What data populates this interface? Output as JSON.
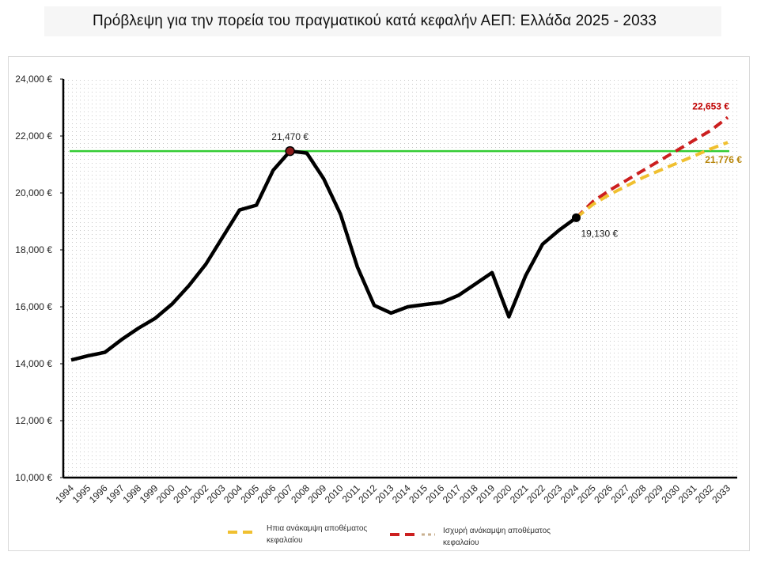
{
  "title": "Πρόβλεψη για την πορεία του πραγματικού κατά κεφαλήν ΑΕΠ: Ελλάδα 2025 - 2033",
  "colors": {
    "history": "#000000",
    "reference": "#33cc33",
    "mild": "#f0c030",
    "strong": "#cc1f1f",
    "mild_label": "#b8860b",
    "strong_label": "#c00000",
    "peak_marker": "#8b1a1a"
  },
  "chart_data": {
    "type": "line",
    "x_labels": [
      "1994",
      "1995",
      "1996",
      "1997",
      "1998",
      "1999",
      "2000",
      "2001",
      "2002",
      "2003",
      "2004",
      "2005",
      "2006",
      "2007",
      "2008",
      "2009",
      "2010",
      "2011",
      "2012",
      "2013",
      "2014",
      "2015",
      "2016",
      "2017",
      "2018",
      "2019",
      "2020",
      "2021",
      "2022",
      "2023",
      "2024",
      "2025",
      "2026",
      "2027",
      "2028",
      "2029",
      "2030",
      "2031",
      "2032",
      "2033"
    ],
    "y_ticks": [
      "10,000 €",
      "12,000 €",
      "14,000 €",
      "16,000 €",
      "18,000 €",
      "20,000 €",
      "22,000 €",
      "24,000 €"
    ],
    "ylim": [
      10000,
      24000
    ],
    "grid": "dotted",
    "legend_position": "bottom",
    "series": [
      {
        "key": "history",
        "x": [
          "1994",
          "1995",
          "1996",
          "1997",
          "1998",
          "1999",
          "2000",
          "2001",
          "2002",
          "2003",
          "2004",
          "2005",
          "2006",
          "2007",
          "2008",
          "2009",
          "2010",
          "2011",
          "2012",
          "2013",
          "2014",
          "2015",
          "2016",
          "2017",
          "2018",
          "2019",
          "2020",
          "2021",
          "2022",
          "2023",
          "2024"
        ],
        "values": [
          14130,
          14280,
          14400,
          14850,
          15250,
          15600,
          16100,
          16750,
          17500,
          18450,
          19400,
          19570,
          20800,
          21470,
          21400,
          20500,
          19250,
          17400,
          16050,
          15780,
          16000,
          16080,
          16150,
          16400,
          16800,
          17200,
          15650,
          17100,
          18200,
          18700,
          19130
        ]
      },
      {
        "key": "strong",
        "name": "Ισχυρή ανάκαμψη αποθέματος κεφαλαίου",
        "x": [
          "2024",
          "2025",
          "2026",
          "2027",
          "2028",
          "2029",
          "2030",
          "2031",
          "2032",
          "2033"
        ],
        "values": [
          19130,
          19700,
          20100,
          20450,
          20800,
          21150,
          21500,
          21850,
          22200,
          22653
        ]
      },
      {
        "key": "mild",
        "name": "Ηπια ανάκαμψη αποθέματος κεφαλαίου",
        "x": [
          "2024",
          "2025",
          "2026",
          "2027",
          "2028",
          "2029",
          "2030",
          "2031",
          "2032",
          "2033"
        ],
        "values": [
          19130,
          19600,
          19950,
          20250,
          20550,
          20800,
          21050,
          21300,
          21550,
          21776
        ]
      }
    ],
    "reference_line": {
      "value": 21470
    },
    "annotations": [
      {
        "x": "2007",
        "value": 21470,
        "text": "21,470 €"
      },
      {
        "x": "2024",
        "value": 19130,
        "text": "19,130 €"
      },
      {
        "x": "2033",
        "value": 22653,
        "text": "22,653 €",
        "series": "strong"
      },
      {
        "x": "2033",
        "value": 21776,
        "text": "21,776 €",
        "series": "mild"
      }
    ]
  },
  "legend": {
    "mild_label": [
      "Ηπια ανάκαμψη αποθέματος",
      "κεφαλαίου"
    ],
    "strong_label": [
      "Ισχυρή ανάκαμψη αποθέματος",
      "κεφαλαίου"
    ]
  }
}
